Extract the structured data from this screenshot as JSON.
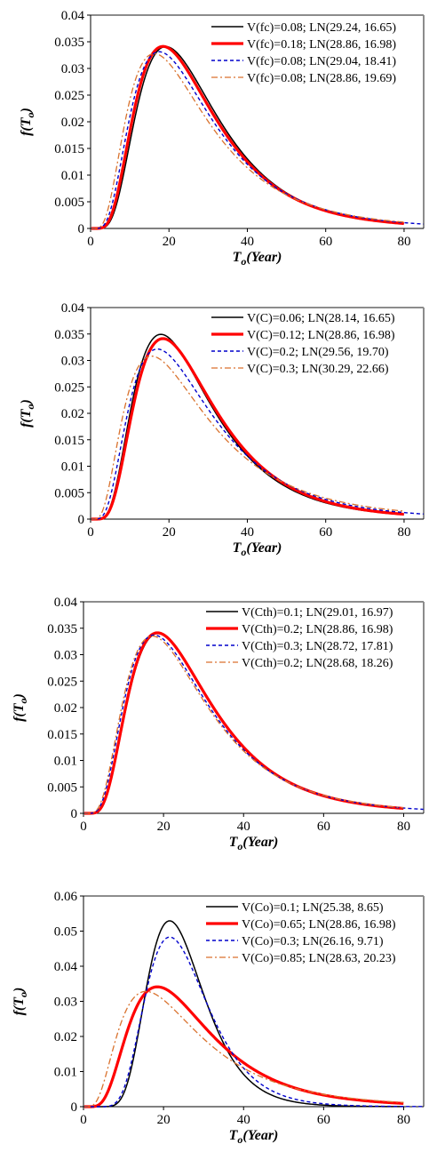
{
  "chart_data": [
    {
      "type": "line",
      "xlabel": "To(Year)",
      "ylabel": "f(To)",
      "xlim": [
        0,
        85
      ],
      "ylim": [
        0,
        0.04
      ],
      "xticks": [
        "0",
        "20",
        "40",
        "60",
        "80"
      ],
      "yticks": [
        "0",
        "0.005",
        "0.01",
        "0.015",
        "0.02",
        "0.025",
        "0.03",
        "0.035",
        "0.04"
      ],
      "legend_position": "top-right",
      "series": [
        {
          "name": "V(fc)=0.08; LN(29.24, 16.65)",
          "mu": 29.24,
          "sigma": 16.65,
          "color": "#000000",
          "style": "solid",
          "x_max": 80
        },
        {
          "name": "V(fc)=0.18; LN(28.86, 16.98)",
          "mu": 28.86,
          "sigma": 16.98,
          "color": "#ff0000",
          "style": "thick",
          "x_max": 80
        },
        {
          "name": "V(fc)=0.08; LN(29.04, 18.41)",
          "mu": 29.04,
          "sigma": 18.41,
          "color": "#0000cc",
          "style": "dash",
          "x_max": 85
        },
        {
          "name": "V(fc)=0.08; LN(28.86, 19.69)",
          "mu": 28.86,
          "sigma": 19.69,
          "color": "#d9722e",
          "style": "dashdot",
          "x_max": 80
        }
      ]
    },
    {
      "type": "line",
      "xlabel": "To(Year)",
      "ylabel": "f(To)",
      "xlim": [
        0,
        85
      ],
      "ylim": [
        0,
        0.04
      ],
      "xticks": [
        "0",
        "20",
        "40",
        "60",
        "80"
      ],
      "yticks": [
        "0",
        "0.005",
        "0.01",
        "0.015",
        "0.02",
        "0.025",
        "0.03",
        "0.035",
        "0.04"
      ],
      "legend_position": "top-right",
      "series": [
        {
          "name": "V(C)=0.06; LN(28.14, 16.65)",
          "mu": 28.14,
          "sigma": 16.65,
          "color": "#000000",
          "style": "solid",
          "x_max": 80
        },
        {
          "name": "V(C)=0.12; LN(28.86, 16.98)",
          "mu": 28.86,
          "sigma": 16.98,
          "color": "#ff0000",
          "style": "thick",
          "x_max": 80
        },
        {
          "name": "V(C)=0.2; LN(29.56, 19.70)",
          "mu": 29.56,
          "sigma": 19.7,
          "color": "#0000cc",
          "style": "dash",
          "x_max": 85
        },
        {
          "name": "V(C)=0.3; LN(30.29, 22.66)",
          "mu": 30.29,
          "sigma": 22.66,
          "color": "#d9722e",
          "style": "dashdot",
          "x_max": 80
        }
      ]
    },
    {
      "type": "line",
      "xlabel": "To(Year)",
      "ylabel": "f(To)",
      "xlim": [
        0,
        85
      ],
      "ylim": [
        0,
        0.04
      ],
      "xticks": [
        "0",
        "20",
        "40",
        "60",
        "80"
      ],
      "yticks": [
        "0",
        "0.005",
        "0.01",
        "0.015",
        "0.02",
        "0.025",
        "0.03",
        "0.035",
        "0.04"
      ],
      "legend_position": "top-right",
      "series": [
        {
          "name": "V(Cth)=0.1; LN(29.01, 16.97)",
          "mu": 29.01,
          "sigma": 16.97,
          "color": "#000000",
          "style": "solid",
          "x_max": 80
        },
        {
          "name": "V(Cth)=0.2; LN(28.86, 16.98)",
          "mu": 28.86,
          "sigma": 16.98,
          "color": "#ff0000",
          "style": "thick",
          "x_max": 80
        },
        {
          "name": "V(Cth)=0.3; LN(28.72, 17.81)",
          "mu": 28.72,
          "sigma": 17.81,
          "color": "#0000cc",
          "style": "dash",
          "x_max": 85
        },
        {
          "name": "V(Cth)=0.2; LN(28.68, 18.26)",
          "mu": 28.68,
          "sigma": 18.26,
          "color": "#d9722e",
          "style": "dashdot",
          "x_max": 80
        }
      ]
    },
    {
      "type": "line",
      "xlabel": "To(Year)",
      "ylabel": "f(To)",
      "xlim": [
        0,
        85
      ],
      "ylim": [
        0,
        0.06
      ],
      "xticks": [
        "0",
        "20",
        "40",
        "60",
        "80"
      ],
      "yticks": [
        "0",
        "0.01",
        "0.02",
        "0.03",
        "0.04",
        "0.05",
        "0.06"
      ],
      "legend_position": "top-right",
      "series": [
        {
          "name": "V(Co)=0.1; LN(25.38, 8.65)",
          "mu": 25.38,
          "sigma": 8.65,
          "color": "#000000",
          "style": "solid",
          "x_max": 80
        },
        {
          "name": "V(Co)=0.65; LN(28.86, 16.98)",
          "mu": 28.86,
          "sigma": 16.98,
          "color": "#ff0000",
          "style": "thick",
          "x_max": 80
        },
        {
          "name": "V(Co)=0.3; LN(26.16, 9.71)",
          "mu": 26.16,
          "sigma": 9.71,
          "color": "#0000cc",
          "style": "dash",
          "x_max": 85
        },
        {
          "name": "V(Co)=0.85; LN(28.63, 20.23)",
          "mu": 28.63,
          "sigma": 20.23,
          "color": "#d9722e",
          "style": "dashdot",
          "x_max": 80
        }
      ]
    }
  ]
}
